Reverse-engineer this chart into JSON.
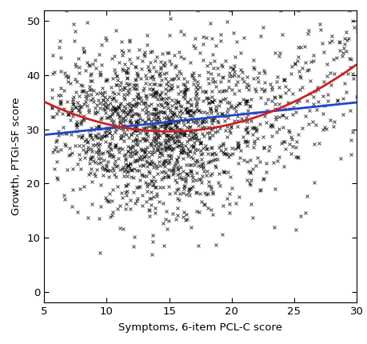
{
  "title": "",
  "xlabel": "Symptoms, 6-item PCL-C score",
  "ylabel": "Growth, PTGI-SF score",
  "xlim": [
    5,
    30
  ],
  "ylim": [
    -2,
    52
  ],
  "xticks": [
    5,
    10,
    15,
    20,
    25,
    30
  ],
  "yticks": [
    0,
    10,
    20,
    30,
    40,
    50
  ],
  "n_points": 1800,
  "seed": 42,
  "linear_color": "#2244cc",
  "quadratic_color": "#cc2222",
  "linear_lw": 2.0,
  "quadratic_lw": 2.0,
  "marker": "x",
  "marker_size": 3.5,
  "marker_color": "black",
  "marker_lw": 0.7,
  "background_color": "white",
  "linear_slope": 0.24,
  "linear_intercept": 27.8,
  "quad_a": 0.055,
  "quad_b": -1.65,
  "quad_c": 42.0,
  "y_std": 7.5
}
